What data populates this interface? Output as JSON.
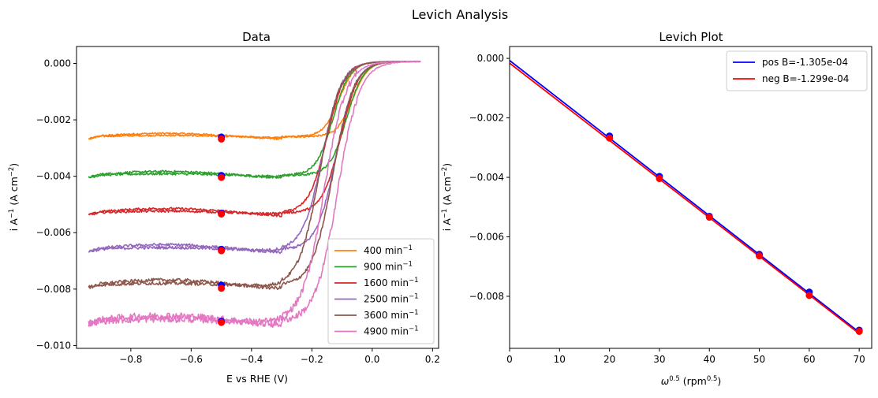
{
  "suptitle": "Levich Analysis",
  "chart_data": [
    {
      "type": "line",
      "title": "Data",
      "xlabel": "E vs RHE (V)",
      "ylabel": {
        "pre": "i A",
        "sup1": "−1",
        "mid": " (A cm",
        "sup2": "−2",
        "post": ")"
      },
      "xlim": [
        -0.98,
        0.22
      ],
      "ylim": [
        -0.0101,
        0.0006
      ],
      "xticks": [
        -0.8,
        -0.6,
        -0.4,
        -0.2,
        0.0,
        0.2
      ],
      "xtick_labels": [
        "−0.8",
        "−0.6",
        "−0.4",
        "−0.2",
        "0.0",
        "0.2"
      ],
      "yticks": [
        0,
        -0.002,
        -0.004,
        -0.006,
        -0.008,
        -0.01
      ],
      "ytick_labels": [
        "0.000",
        "−0.002",
        "−0.004",
        "−0.006",
        "−0.008",
        "−0.010"
      ],
      "legend_position": "lower-right",
      "marker_potential": -0.5,
      "series": [
        {
          "name": "400",
          "unit": " min",
          "unit_sup": "−1",
          "color": "#ff7f0e",
          "plateau": -0.0026,
          "half_wave": -0.1,
          "noise": 3e-05
        },
        {
          "name": "900",
          "unit": " min",
          "unit_sup": "−1",
          "color": "#2ca02c",
          "plateau": -0.00397,
          "half_wave": -0.12,
          "noise": 4e-05
        },
        {
          "name": "1600",
          "unit": " min",
          "unit_sup": "−1",
          "color": "#d62728",
          "plateau": -0.0053,
          "half_wave": -0.14,
          "noise": 4e-05
        },
        {
          "name": "2500",
          "unit": " min",
          "unit_sup": "−1",
          "color": "#9467bd",
          "plateau": -0.0066,
          "half_wave": -0.155,
          "noise": 5e-05
        },
        {
          "name": "3600",
          "unit": " min",
          "unit_sup": "−1",
          "color": "#8c564b",
          "plateau": -0.00787,
          "half_wave": -0.165,
          "noise": 6e-05
        },
        {
          "name": "4900",
          "unit": " min",
          "unit_sup": "−1",
          "color": "#e377c2",
          "plateau": -0.00915,
          "half_wave": -0.15,
          "noise": 0.00012
        }
      ]
    },
    {
      "type": "scatter",
      "title": "Levich Plot",
      "xlabel": {
        "pre": "ω",
        "sup1": "0.5",
        "mid": " (rpm",
        "sup2": "0.5",
        "post": ")"
      },
      "ylabel": {
        "pre": "i A",
        "sup1": "−1",
        "mid": " (A cm",
        "sup2": "−2",
        "post": ")"
      },
      "xlim": [
        0,
        72.5
      ],
      "ylim": [
        -0.00975,
        0.0004
      ],
      "xticks": [
        0,
        10,
        20,
        30,
        40,
        50,
        60,
        70
      ],
      "xtick_labels": [
        "0",
        "10",
        "20",
        "30",
        "40",
        "50",
        "60",
        "70"
      ],
      "yticks": [
        0,
        -0.002,
        -0.004,
        -0.006,
        -0.008
      ],
      "ytick_labels": [
        "0.000",
        "−0.002",
        "−0.004",
        "−0.006",
        "−0.008"
      ],
      "legend_position": "top-right",
      "x": [
        20,
        30,
        40,
        50,
        60,
        70
      ],
      "series": [
        {
          "name": "pos B=-1.305e-04",
          "color": "#0000ff",
          "slope": -0.0001305,
          "intercept": -7e-05,
          "values": [
            -0.00261,
            -0.00397,
            -0.00531,
            -0.00659,
            -0.00786,
            -0.00914
          ]
        },
        {
          "name": "neg B=-1.299e-04",
          "color": "#ff0000",
          "slope": -0.0001299,
          "intercept": -0.00016,
          "values": [
            -0.00268,
            -0.00404,
            -0.00534,
            -0.00664,
            -0.00797,
            -0.00918
          ]
        }
      ]
    }
  ]
}
